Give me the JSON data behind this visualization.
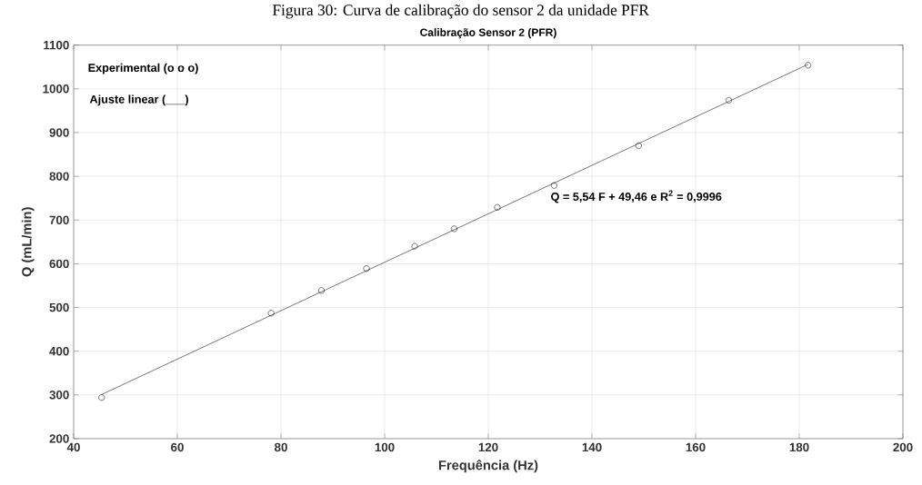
{
  "chart_data": {
    "type": "scatter",
    "title": "Calibração Sensor 2 (PFR)",
    "xlabel": "Frequência (Hz)",
    "ylabel": "Q (mL/min)",
    "series": [
      {
        "color": "#000000",
        "marker": "circle",
        "x": [
          45.4,
          78.1,
          87.8,
          96.5,
          105.8,
          113.4,
          121.75,
          132.7,
          149.0,
          166.4,
          181.7
        ],
        "values": [
          294,
          487,
          539,
          589,
          640,
          680,
          729,
          779,
          870,
          974,
          1054
        ]
      },
      {
        "type": "line",
        "color": "#000000",
        "marker": "none",
        "line_style": "solid",
        "x": [
          45.4,
          181.7
        ],
        "values": [
          301,
          1056
        ]
      }
    ],
    "xlim": [
      40,
      200
    ],
    "xticks": [
      40,
      60,
      80,
      100,
      120,
      140,
      160,
      180,
      200
    ],
    "ylim": [
      200,
      1100
    ],
    "yticks": [
      200,
      300,
      400,
      500,
      600,
      700,
      800,
      900,
      1000,
      1100
    ],
    "grid": true,
    "annotations": [
      "Figura 30: Curva de calibração do sensor 2 da unidade PFR",
      "Experimental (o o o)",
      "Ajuste linear (___)",
      "Q = 5,54 F + 49,46 e R$^{2}$ = 0,9996"
    ]
  }
}
